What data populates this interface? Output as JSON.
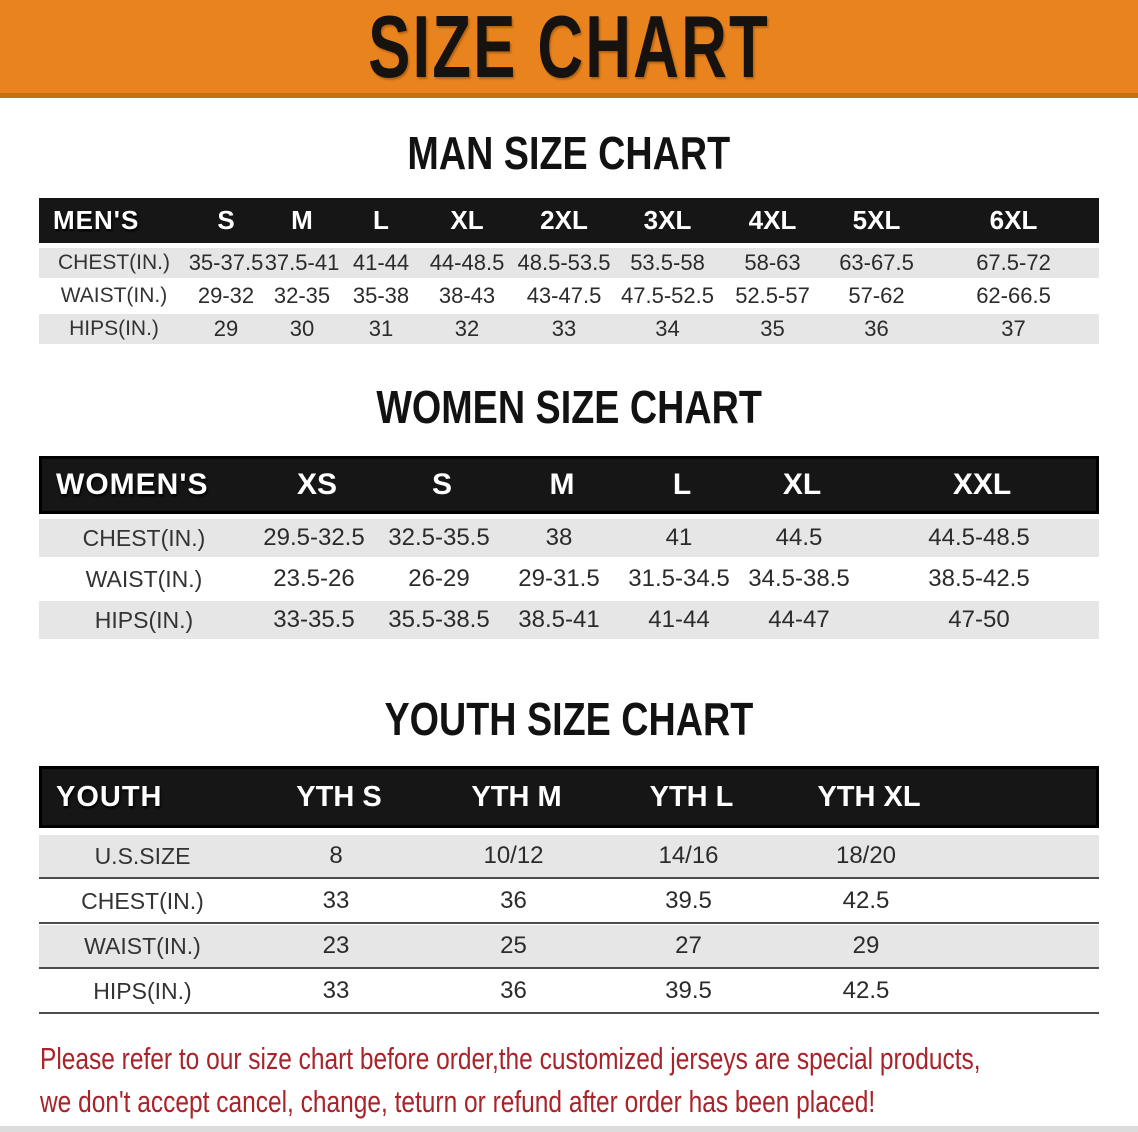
{
  "banner": {
    "title": "SIZE CHART"
  },
  "colors": {
    "banner_orange": "#E8831E",
    "header_black": "#161616",
    "row_gray": "#E6E6E6",
    "disclaimer_red": "#A8242A"
  },
  "sections": {
    "men": {
      "heading": "MAN SIZE CHART",
      "table": {
        "header": [
          "MEN'S",
          "S",
          "M",
          "L",
          "XL",
          "2XL",
          "3XL",
          "4XL",
          "5XL",
          "6XL"
        ],
        "rows": [
          {
            "label": "CHEST(IN.)",
            "values": [
              "35-37.5",
              "37.5-41",
              "41-44",
              "44-48.5",
              "48.5-53.5",
              "53.5-58",
              "58-63",
              "63-67.5",
              "67.5-72"
            ]
          },
          {
            "label": "WAIST(IN.)",
            "values": [
              "29-32",
              "32-35",
              "35-38",
              "38-43",
              "43-47.5",
              "47.5-52.5",
              "52.5-57",
              "57-62",
              "62-66.5"
            ]
          },
          {
            "label": "HIPS(IN.)",
            "values": [
              "29",
              "30",
              "31",
              "32",
              "33",
              "34",
              "35",
              "36",
              "37"
            ]
          }
        ]
      }
    },
    "women": {
      "heading": "WOMEN SIZE CHART",
      "table": {
        "header": [
          "WOMEN'S",
          "XS",
          "S",
          "M",
          "L",
          "XL",
          "XXL"
        ],
        "rows": [
          {
            "label": "CHEST(IN.)",
            "values": [
              "29.5-32.5",
              "32.5-35.5",
              "38",
              "41",
              "44.5",
              "44.5-48.5"
            ]
          },
          {
            "label": "WAIST(IN.)",
            "values": [
              "23.5-26",
              "26-29",
              "29-31.5",
              "31.5-34.5",
              "34.5-38.5",
              "38.5-42.5"
            ]
          },
          {
            "label": "HIPS(IN.)",
            "values": [
              "33-35.5",
              "35.5-38.5",
              "38.5-41",
              "41-44",
              "44-47",
              "47-50"
            ]
          }
        ]
      }
    },
    "youth": {
      "heading": "YOUTH SIZE CHART",
      "table": {
        "header": [
          "YOUTH",
          "YTH S",
          "YTH M",
          "YTH L",
          "YTH XL"
        ],
        "rows": [
          {
            "label": "U.S.SIZE",
            "values": [
              "8",
              "10/12",
              "14/16",
              "18/20"
            ]
          },
          {
            "label": "CHEST(IN.)",
            "values": [
              "33",
              "36",
              "39.5",
              "42.5"
            ]
          },
          {
            "label": "WAIST(IN.)",
            "values": [
              "23",
              "25",
              "27",
              "29"
            ]
          },
          {
            "label": "HIPS(IN.)",
            "values": [
              "33",
              "36",
              "39.5",
              "42.5"
            ]
          }
        ]
      }
    }
  },
  "disclaimer": {
    "line1": "Please refer to our size chart before order,the customized jerseys are special products,",
    "line2": "we don't accept cancel, change, teturn or refund after order has been placed!"
  }
}
